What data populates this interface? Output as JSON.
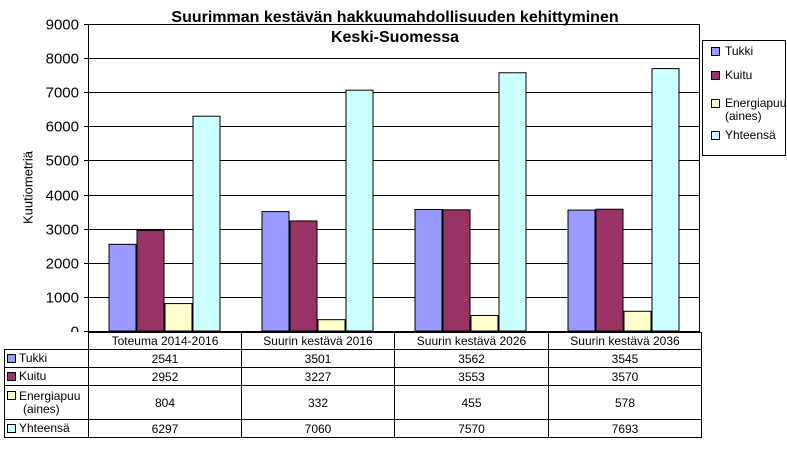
{
  "chart_data": {
    "type": "bar",
    "title_lines": [
      "Suurimman kestävän hakkuumahdollisuuden kehittyminen",
      "Keski-Suomessa"
    ],
    "ylabel": "Kuutiometriä",
    "xlabel": "",
    "ylim": [
      0,
      9000
    ],
    "yticks": [
      0,
      1000,
      2000,
      3000,
      4000,
      5000,
      6000,
      7000,
      8000,
      9000
    ],
    "grid": true,
    "legend_position": "right",
    "categories": [
      "Toteuma 2014-2016",
      "Suurin kestävä 2016",
      "Suurin kestävä 2026",
      "Suurin kestävä 2036"
    ],
    "series": [
      {
        "name": "Tukki",
        "label_lines": [
          "Tukki"
        ],
        "color": "#9999FF",
        "values": [
          2541,
          3501,
          3562,
          3545
        ]
      },
      {
        "name": "Kuitu",
        "label_lines": [
          "Kuitu"
        ],
        "color": "#993366",
        "values": [
          2952,
          3227,
          3553,
          3570
        ]
      },
      {
        "name": "Energiapuu (aines)",
        "label_lines": [
          "Energiapuu",
          "(aines)"
        ],
        "color": "#FFFFCC",
        "values": [
          804,
          332,
          455,
          578
        ]
      },
      {
        "name": "Yhteensä",
        "label_lines": [
          "Yhteensä"
        ],
        "color": "#CCFFFF",
        "values": [
          6297,
          7060,
          7570,
          7693
        ]
      }
    ]
  }
}
